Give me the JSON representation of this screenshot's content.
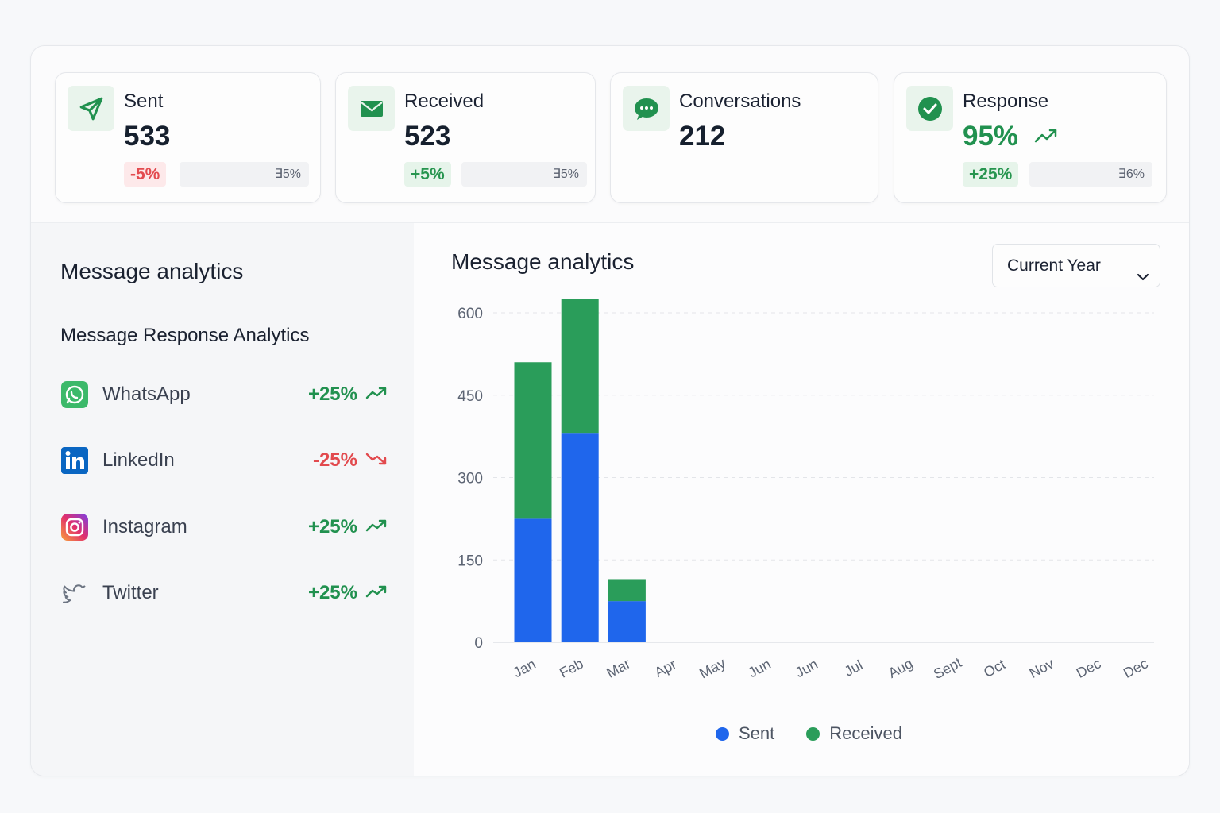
{
  "colors": {
    "accent_green": "#21914f",
    "sent_blue": "#1f66ec",
    "received_green": "#2a9d5a",
    "negative_red": "#e34b4f"
  },
  "stats": [
    {
      "label": "Sent",
      "value": "533",
      "change": "-5%",
      "change_tone": "red",
      "compare": "∃5%",
      "icon": "send-icon"
    },
    {
      "label": "Received",
      "value": "523",
      "change": "+5%",
      "change_tone": "green",
      "compare": "∃5%",
      "icon": "mail-icon"
    },
    {
      "label": "Conversations",
      "value": "212",
      "icon": "chat-bubble-icon"
    },
    {
      "label": "Response",
      "value": "95%",
      "change": "+25%",
      "change_tone": "green",
      "compare": "∃6%",
      "icon": "check-circle-icon"
    }
  ],
  "left_panel": {
    "title": "Message analytics",
    "subtitle": "Message Response Analytics",
    "channels": [
      {
        "name": "WhatsApp",
        "change": "+25%",
        "trend": "up",
        "icon": "whatsapp-icon"
      },
      {
        "name": "LinkedIn",
        "change": "-25%",
        "trend": "down",
        "icon": "linkedin-icon"
      },
      {
        "name": "Instagram",
        "change": "+25%",
        "trend": "up",
        "icon": "instagram-icon"
      },
      {
        "name": "Twitter",
        "change": "+25%",
        "trend": "up",
        "icon": "twitter-icon"
      }
    ]
  },
  "right_panel": {
    "title": "Message analytics",
    "period_select": {
      "selected": "Current Year"
    }
  },
  "chart_data": {
    "type": "bar",
    "stacked": true,
    "categories": [
      "Jan",
      "Feb",
      "Mar",
      "Apr",
      "May",
      "Jun",
      "Jun",
      "Jul",
      "Aug",
      "Sept",
      "Oct",
      "Nov",
      "Dec",
      "Dec"
    ],
    "series": [
      {
        "name": "Sent",
        "values": [
          225,
          380,
          75,
          0,
          0,
          0,
          0,
          0,
          0,
          0,
          0,
          0,
          0,
          0
        ],
        "color": "#1f66ec"
      },
      {
        "name": "Received",
        "values": [
          285,
          245,
          40,
          0,
          0,
          0,
          0,
          0,
          0,
          0,
          0,
          0,
          0,
          0
        ],
        "color": "#2a9d5a"
      }
    ],
    "yticks": [
      0,
      150,
      300,
      450,
      600
    ],
    "ylim": [
      0,
      600
    ],
    "grid": true,
    "legend_position": "bottom-center"
  }
}
